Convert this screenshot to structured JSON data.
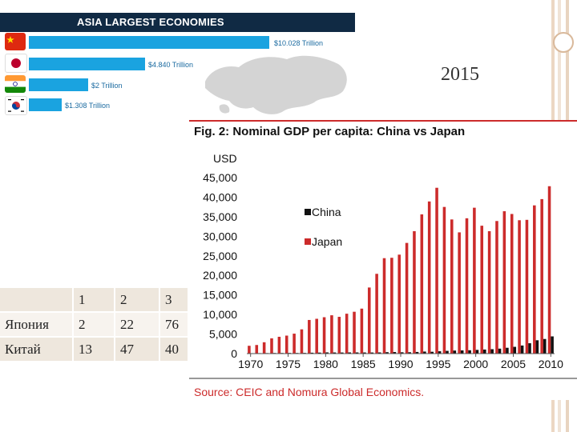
{
  "slide": {
    "year_label": "2015"
  },
  "asia_graphic": {
    "title": "ASIA LARGEST ECONOMIES",
    "bars": [
      {
        "country": "China",
        "value": 10.028,
        "label": "$10.028 Trillion",
        "flag": "china-flag"
      },
      {
        "country": "Japan",
        "value": 4.84,
        "label": "$4.840 Trillion",
        "flag": "japan-flag"
      },
      {
        "country": "India",
        "value": 2.0,
        "label": "$2 Trillion",
        "flag": "india-flag"
      },
      {
        "country": "South Korea",
        "value": 1.308,
        "label": "$1.308 Trillion",
        "flag": "korea-flag"
      }
    ],
    "bar_color": "#1aa3e0",
    "header_color": "#102a44"
  },
  "table": {
    "header": [
      "",
      "1",
      "2",
      "3"
    ],
    "rows": [
      [
        "Япония",
        "2",
        "22",
        "76"
      ],
      [
        "Китай",
        "13",
        "47",
        "40"
      ]
    ]
  },
  "chart_data": {
    "type": "bar",
    "title": "Fig. 2: Nominal GDP per capita: China vs Japan",
    "ylabel": "USD",
    "source": "Source: CEIC and Nomura Global Economics.",
    "ylim": [
      0,
      45000
    ],
    "yticks": [
      "0",
      "5,000",
      "10,000",
      "15,000",
      "20,000",
      "25,000",
      "30,000",
      "35,000",
      "40,000",
      "45,000"
    ],
    "xticks": [
      "1970",
      "1975",
      "1980",
      "1985",
      "1990",
      "1995",
      "2000",
      "2005",
      "2010"
    ],
    "legend_position": "top-center",
    "categories": [
      1970,
      1971,
      1972,
      1973,
      1974,
      1975,
      1976,
      1977,
      1978,
      1979,
      1980,
      1981,
      1982,
      1983,
      1984,
      1985,
      1986,
      1987,
      1988,
      1989,
      1990,
      1991,
      1992,
      1993,
      1994,
      1995,
      1996,
      1997,
      1998,
      1999,
      2000,
      2001,
      2002,
      2003,
      2004,
      2005,
      2006,
      2007,
      2008,
      2009,
      2010
    ],
    "series": [
      {
        "name": "China",
        "color": "#111111",
        "values": [
          110,
          120,
          130,
          160,
          160,
          170,
          160,
          180,
          230,
          260,
          310,
          290,
          280,
          300,
          300,
          290,
          280,
          300,
          370,
          400,
          340,
          350,
          420,
          520,
          470,
          600,
          700,
          780,
          820,
          860,
          950,
          1040,
          1130,
          1270,
          1490,
          1730,
          2070,
          2650,
          3410,
          3740,
          4400
        ]
      },
      {
        "name": "Japan",
        "color": "#cc2b2b",
        "values": [
          2000,
          2200,
          2900,
          3900,
          4300,
          4600,
          5100,
          6200,
          8600,
          8900,
          9300,
          9800,
          9400,
          10200,
          10700,
          11500,
          16900,
          20400,
          24400,
          24500,
          25300,
          28300,
          31300,
          35600,
          38900,
          42400,
          37500,
          34300,
          31000,
          34600,
          37300,
          32700,
          31300,
          33900,
          36400,
          35700,
          34100,
          34200,
          37900,
          39500,
          42800
        ]
      }
    ]
  }
}
